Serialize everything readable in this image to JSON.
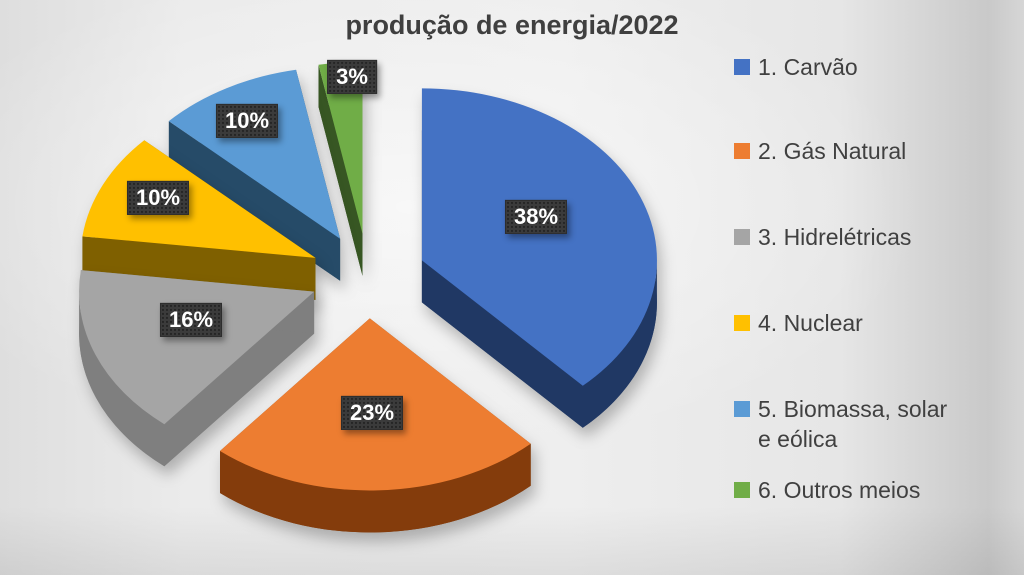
{
  "title": "produção de energia/2022",
  "chart_data": {
    "type": "pie",
    "style": "3d-exploded",
    "title": "produção de energia/2022",
    "unit": "%",
    "legend_position": "right",
    "categories": [
      "1. Carvão",
      "2. Gás Natural",
      "3. Hidrelétricas",
      "4. Nuclear",
      "5. Biomassa, solar e eólica",
      "6. Outros meios"
    ],
    "values": [
      38,
      23,
      16,
      10,
      10,
      3
    ],
    "data_labels": [
      "38%",
      "23%",
      "16%",
      "10%",
      "10%",
      "3%"
    ],
    "colors": [
      "#4472C4",
      "#ED7D31",
      "#A5A5A5",
      "#FFC000",
      "#5B9BD5",
      "#70AD47"
    ],
    "side_colors": [
      "#203864",
      "#843C0C",
      "#7F7F7F",
      "#7F6000",
      "#264B68",
      "#375623"
    ]
  },
  "legend": {
    "items": [
      {
        "label": "1. Carvão",
        "label_lines": [
          "1. Carvão"
        ],
        "color": "#4472C4"
      },
      {
        "label": "2. Gás Natural",
        "label_lines": [
          "2. Gás Natural"
        ],
        "color": "#ED7D31"
      },
      {
        "label": "3. Hidrelétricas",
        "label_lines": [
          "3. Hidrelétricas"
        ],
        "color": "#A5A5A5"
      },
      {
        "label": "4. Nuclear",
        "label_lines": [
          "4. Nuclear"
        ],
        "color": "#FFC000"
      },
      {
        "label": "5. Biomassa, solar e eólica",
        "label_lines": [
          "5. Biomassa, solar",
          "e eólica"
        ],
        "color": "#5B9BD5"
      },
      {
        "label": "6. Outros meios",
        "label_lines": [
          "6. Outros meios"
        ],
        "color": "#70AD47"
      }
    ]
  },
  "styles": {
    "title_color": "#3F3F3F",
    "legend_text_color": "#404040",
    "data_label_text_color": "#FFFFFF",
    "data_label_box_color": "#3B3B3B",
    "background_color": "#EBEBEB"
  }
}
